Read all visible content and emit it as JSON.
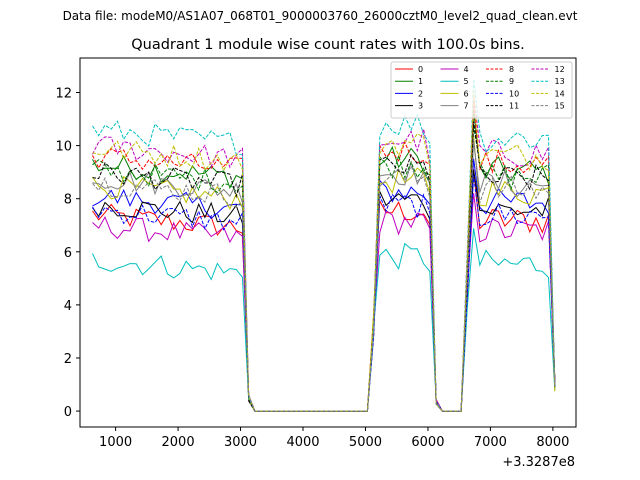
{
  "chart_data": {
    "type": "line",
    "suptitle": "Data file: modeM0/AS1A07_068T01_9000003760_26000cztM0_level2_quad_clean.evt",
    "title": "Quadrant 1 module wise count rates with 100.0s bins.",
    "xlabel": "",
    "ylabel": "",
    "x_offset_label": "+3.3287e8",
    "xlim": [
      430,
      8370
    ],
    "ylim": [
      -0.6,
      13.3
    ],
    "xticks": [
      1000,
      2000,
      3000,
      4000,
      5000,
      6000,
      7000,
      8000
    ],
    "xtick_labels": [
      "1000",
      "2000",
      "3000",
      "4000",
      "5000",
      "6000",
      "7000",
      "8000"
    ],
    "yticks": [
      0,
      2,
      4,
      6,
      8,
      10,
      12
    ],
    "ytick_labels": [
      "0",
      "2",
      "4",
      "6",
      "8",
      "10",
      "12"
    ],
    "legend": {
      "position": "top-right",
      "columns": 4
    },
    "segments": [
      {
        "x0": 630,
        "n": 25,
        "step": 100
      },
      {
        "x0": 3130,
        "n": 20,
        "step": 100
      },
      {
        "x0": 5130,
        "n": 9,
        "step": 100
      },
      {
        "x0": 6030,
        "n": 2,
        "step": 100
      },
      {
        "x0": 6230,
        "n": 4,
        "step": 100
      },
      {
        "x0": 6630,
        "n": 15,
        "step": 100
      }
    ],
    "series": [
      {
        "name": "0",
        "color": "#ff0000",
        "dash": "solid",
        "level": 7.4
      },
      {
        "name": "1",
        "color": "#008000",
        "dash": "solid",
        "level": 9.3
      },
      {
        "name": "2",
        "color": "#0000ff",
        "dash": "solid",
        "level": 8.1
      },
      {
        "name": "3",
        "color": "#000000",
        "dash": "solid",
        "level": 7.8
      },
      {
        "name": "4",
        "color": "#bf00bf",
        "dash": "solid",
        "level": 7.0
      },
      {
        "name": "5",
        "color": "#00bfbf",
        "dash": "solid",
        "level": 5.7
      },
      {
        "name": "6",
        "color": "#bfbf00",
        "dash": "solid",
        "level": 8.5
      },
      {
        "name": "7",
        "color": "#808080",
        "dash": "solid",
        "level": 8.8
      },
      {
        "name": "8",
        "color": "#ff0000",
        "dash": "dashed",
        "level": 9.6
      },
      {
        "name": "9",
        "color": "#008000",
        "dash": "dashed",
        "level": 9.1
      },
      {
        "name": "10",
        "color": "#0000ff",
        "dash": "dashed",
        "level": 7.6
      },
      {
        "name": "11",
        "color": "#000000",
        "dash": "dashed",
        "level": 9.0
      },
      {
        "name": "12",
        "color": "#bf00bf",
        "dash": "dashed",
        "level": 10.0
      },
      {
        "name": "13",
        "color": "#00bfbf",
        "dash": "dashed",
        "level": 10.6
      },
      {
        "name": "14",
        "color": "#bfbf00",
        "dash": "dashed",
        "level": 9.9
      },
      {
        "name": "15",
        "color": "#808080",
        "dash": "dashed",
        "level": 8.6
      }
    ]
  }
}
